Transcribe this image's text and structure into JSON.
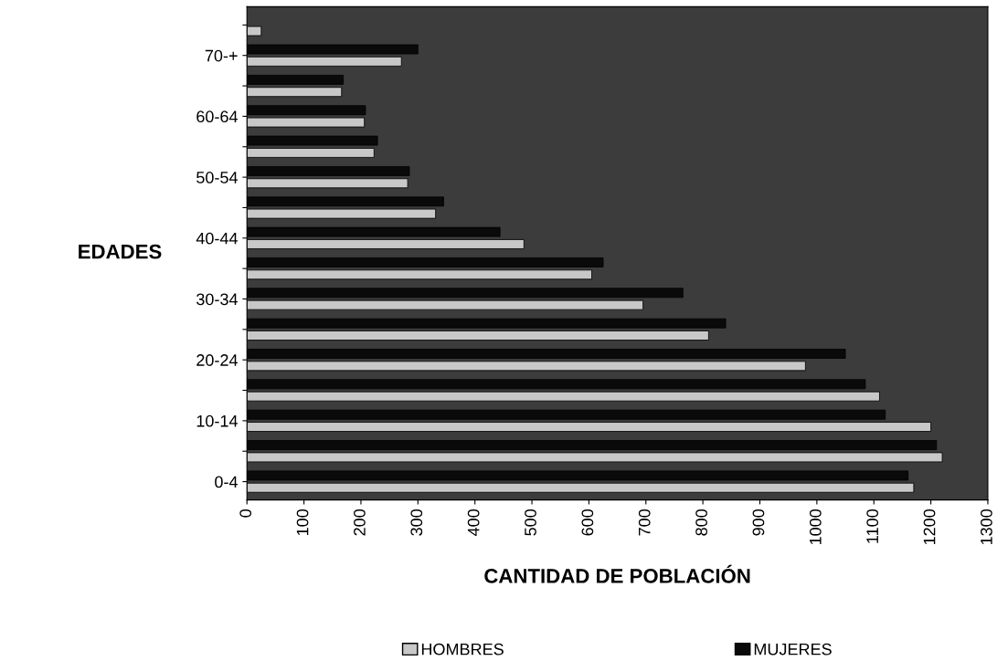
{
  "chart_data": {
    "type": "bar",
    "orientation": "horizontal",
    "xlabel": "CANTIDAD DE POBLACIÓN",
    "ylabel": "EDADES",
    "categories": [
      null,
      "70-+",
      null,
      "60-64",
      null,
      "50-54",
      null,
      "40-44",
      null,
      "30-34",
      null,
      "20-24",
      null,
      "10-14",
      null,
      "0-4"
    ],
    "series": [
      {
        "name": "HOMBRES",
        "color": "#c8c8c8",
        "values": [
          25,
          271,
          166,
          206,
          223,
          282,
          331,
          486,
          605,
          695,
          810,
          980,
          1110,
          1200,
          1220,
          1170
        ]
      },
      {
        "name": "MUJERES",
        "color": "#0a0a0a",
        "values": [
          null,
          300,
          169,
          208,
          229,
          285,
          345,
          444,
          625,
          765,
          840,
          1050,
          1085,
          1120,
          1210,
          1160
        ]
      }
    ],
    "xlim": [
      0,
      1300
    ],
    "xticks": [
      0,
      100,
      200,
      300,
      400,
      500,
      600,
      700,
      800,
      900,
      1000,
      1100,
      1200,
      1300
    ],
    "grid": false,
    "legend": "bottom"
  }
}
